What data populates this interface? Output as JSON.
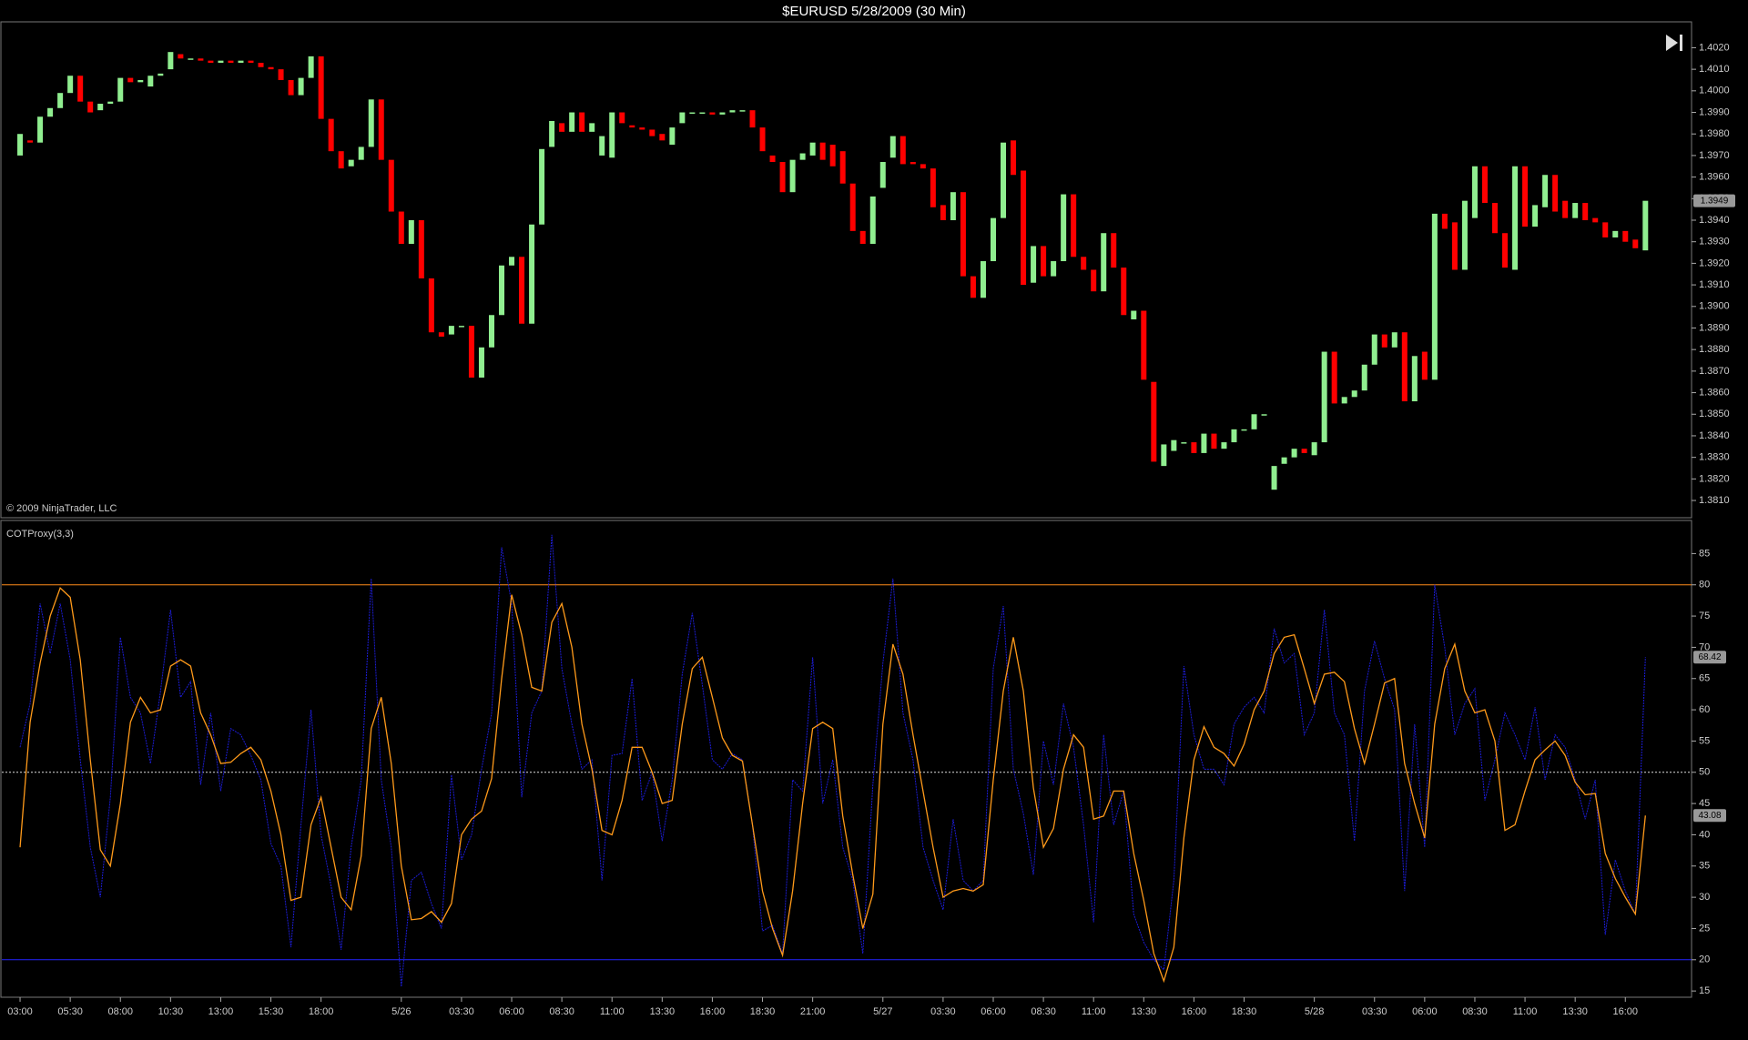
{
  "chart_data": [
    {
      "type": "candlestick",
      "title": "$EURUSD  5/28/2009 (30 Min)",
      "annotation": "© 2009 NinjaTrader, LLC",
      "up_color": "#90ee90",
      "down_color": "#ff0000",
      "xlim": [
        -2,
        166.6
      ],
      "ylim": [
        1.3802,
        1.4032
      ],
      "yticks": [
        {
          "value": 1.381,
          "label": "1.3810"
        },
        {
          "value": 1.382,
          "label": "1.3820"
        },
        {
          "value": 1.383,
          "label": "1.3830"
        },
        {
          "value": 1.384,
          "label": "1.3840"
        },
        {
          "value": 1.385,
          "label": "1.3850"
        },
        {
          "value": 1.386,
          "label": "1.3860"
        },
        {
          "value": 1.387,
          "label": "1.3870"
        },
        {
          "value": 1.388,
          "label": "1.3880"
        },
        {
          "value": 1.389,
          "label": "1.3890"
        },
        {
          "value": 1.39,
          "label": "1.3900"
        },
        {
          "value": 1.391,
          "label": "1.3910"
        },
        {
          "value": 1.392,
          "label": "1.3920"
        },
        {
          "value": 1.393,
          "label": "1.3930"
        },
        {
          "value": 1.394,
          "label": "1.3940"
        },
        {
          "value": 1.395,
          "label": "1.3950"
        },
        {
          "value": 1.396,
          "label": "1.3960"
        },
        {
          "value": 1.397,
          "label": "1.3970"
        },
        {
          "value": 1.398,
          "label": "1.3980"
        },
        {
          "value": 1.399,
          "label": "1.3990"
        },
        {
          "value": 1.4,
          "label": "1.4000"
        },
        {
          "value": 1.401,
          "label": "1.4010"
        },
        {
          "value": 1.402,
          "label": "1.4020"
        }
      ],
      "open": [
        1.397,
        1.3977,
        1.3976,
        1.3988,
        1.3992,
        1.3999,
        1.4007,
        1.3995,
        1.3991,
        1.3994,
        1.3995,
        1.4006,
        1.4004,
        1.4002,
        1.4007,
        1.401,
        1.4017,
        1.4015,
        1.4015,
        1.4014,
        1.4013,
        1.4014,
        1.4013,
        1.4014,
        1.4013,
        1.4011,
        1.401,
        1.4005,
        1.3998,
        1.4006,
        1.4016,
        1.3987,
        1.3972,
        1.3965,
        1.3968,
        1.3974,
        1.3996,
        1.3968,
        1.3944,
        1.3929,
        1.394,
        1.3913,
        1.3888,
        1.3887,
        1.3891,
        1.3891,
        1.3867,
        1.3881,
        1.3896,
        1.3919,
        1.3923,
        1.3892,
        1.3938,
        1.3974,
        1.3985,
        1.3981,
        1.399,
        1.3981,
        1.397,
        1.3969,
        1.399,
        1.3984,
        1.3983,
        1.3982,
        1.398,
        1.3975,
        1.3985,
        1.399,
        1.399,
        1.399,
        1.3989,
        1.399,
        1.3991,
        1.3991,
        1.3983,
        1.397,
        1.3967,
        1.3953,
        1.3968,
        1.397,
        1.3976,
        1.3975,
        1.3972,
        1.3957,
        1.3935,
        1.3929,
        1.3955,
        1.3969,
        1.3979,
        1.3967,
        1.3966,
        1.3964,
        1.3947,
        1.394,
        1.3953,
        1.3914,
        1.3904,
        1.3921,
        1.3941,
        1.3977,
        1.3963,
        1.3911,
        1.3928,
        1.3914,
        1.3921,
        1.3952,
        1.3923,
        1.3917,
        1.3907,
        1.3934,
        1.3918,
        1.3894,
        1.3898,
        1.3865,
        1.3826,
        1.3833,
        1.3837,
        1.3837,
        1.3832,
        1.3841,
        1.3834,
        1.3837,
        1.3843,
        1.3843,
        1.385,
        1.3815,
        1.3827,
        1.383,
        1.3834,
        1.3831,
        1.3837,
        1.3879,
        1.3855,
        1.3858,
        1.3861,
        1.3873,
        1.3887,
        1.3881,
        1.3888,
        1.3856,
        1.3879,
        1.3866,
        1.3943,
        1.3939,
        1.3917,
        1.3941,
        1.3965,
        1.3948,
        1.3934,
        1.3917,
        1.3965,
        1.3937,
        1.3946,
        1.3961,
        1.3949,
        1.3941,
        1.3948,
        1.3941,
        1.3939,
        1.3932,
        1.3935,
        1.3931,
        1.3926
      ],
      "close": [
        1.398,
        1.3976,
        1.3988,
        1.3992,
        1.3999,
        1.4007,
        1.3995,
        1.399,
        1.3994,
        1.3995,
        1.4006,
        1.4004,
        1.4005,
        1.4007,
        1.4008,
        1.4018,
        1.4015,
        1.4015,
        1.4014,
        1.4013,
        1.4014,
        1.4013,
        1.4014,
        1.4013,
        1.4011,
        1.401,
        1.4005,
        1.3998,
        1.4006,
        1.4016,
        1.3987,
        1.3972,
        1.3964,
        1.3968,
        1.3974,
        1.3996,
        1.3968,
        1.3944,
        1.3929,
        1.394,
        1.3913,
        1.3888,
        1.3886,
        1.3891,
        1.3891,
        1.3867,
        1.3881,
        1.3896,
        1.3919,
        1.3923,
        1.3892,
        1.3938,
        1.3973,
        1.3986,
        1.3981,
        1.399,
        1.3981,
        1.3985,
        1.3979,
        1.399,
        1.3985,
        1.3983,
        1.3982,
        1.3979,
        1.3977,
        1.3983,
        1.399,
        1.399,
        1.399,
        1.3989,
        1.399,
        1.3991,
        1.3991,
        1.3983,
        1.3972,
        1.3967,
        1.3953,
        1.3968,
        1.3971,
        1.3976,
        1.3968,
        1.3965,
        1.3957,
        1.3935,
        1.3929,
        1.3951,
        1.3967,
        1.3979,
        1.3966,
        1.3966,
        1.3964,
        1.3946,
        1.394,
        1.3953,
        1.3914,
        1.3904,
        1.3921,
        1.3941,
        1.3976,
        1.3961,
        1.391,
        1.3928,
        1.3914,
        1.3921,
        1.3952,
        1.3923,
        1.3917,
        1.3907,
        1.3934,
        1.3918,
        1.3896,
        1.3898,
        1.3866,
        1.3828,
        1.3836,
        1.3838,
        1.3837,
        1.3832,
        1.3841,
        1.3834,
        1.3837,
        1.3843,
        1.3843,
        1.385,
        1.385,
        1.3826,
        1.383,
        1.3834,
        1.3832,
        1.3837,
        1.3879,
        1.3855,
        1.3858,
        1.3861,
        1.3873,
        1.3887,
        1.3881,
        1.3888,
        1.3856,
        1.3877,
        1.3866,
        1.3943,
        1.3936,
        1.3917,
        1.3949,
        1.3965,
        1.3948,
        1.3934,
        1.3918,
        1.3965,
        1.3937,
        1.3947,
        1.3961,
        1.3944,
        1.3941,
        1.3948,
        1.394,
        1.3939,
        1.3932,
        1.3935,
        1.393,
        1.3927,
        1.3949
      ]
    },
    {
      "type": "line",
      "title": "COTProxy(3,3)",
      "xlim": [
        -2,
        166.6
      ],
      "ylim": [
        14,
        90.3
      ],
      "yticks": [
        15,
        20,
        25,
        30,
        35,
        40,
        45,
        50,
        55,
        60,
        65,
        70,
        75,
        80,
        85
      ],
      "xticks": [
        {
          "value": 0,
          "label": "03:00"
        },
        {
          "value": 5,
          "label": "05:30"
        },
        {
          "value": 10,
          "label": "08:00"
        },
        {
          "value": 15,
          "label": "10:30"
        },
        {
          "value": 20,
          "label": "13:00"
        },
        {
          "value": 25,
          "label": "15:30"
        },
        {
          "value": 30,
          "label": "18:00"
        },
        {
          "value": 38,
          "label": "5/26"
        },
        {
          "value": 44,
          "label": "03:30"
        },
        {
          "value": 49,
          "label": "06:00"
        },
        {
          "value": 54,
          "label": "08:30"
        },
        {
          "value": 59,
          "label": "11:00"
        },
        {
          "value": 64,
          "label": "13:30"
        },
        {
          "value": 69,
          "label": "16:00"
        },
        {
          "value": 74,
          "label": "18:30"
        },
        {
          "value": 79,
          "label": "21:00"
        },
        {
          "value": 86,
          "label": "5/27"
        },
        {
          "value": 92,
          "label": "03:30"
        },
        {
          "value": 97,
          "label": "06:00"
        },
        {
          "value": 102,
          "label": "08:30"
        },
        {
          "value": 107,
          "label": "11:00"
        },
        {
          "value": 112,
          "label": "13:30"
        },
        {
          "value": 117,
          "label": "16:00"
        },
        {
          "value": 122,
          "label": "18:30"
        },
        {
          "value": 129,
          "label": "5/28"
        },
        {
          "value": 135,
          "label": "03:30"
        },
        {
          "value": 140,
          "label": "06:00"
        },
        {
          "value": 145,
          "label": "08:30"
        },
        {
          "value": 150,
          "label": "11:00"
        },
        {
          "value": 155,
          "label": "13:30"
        },
        {
          "value": 160,
          "label": "16:00"
        }
      ],
      "levels": [
        {
          "value": 80,
          "color": "#ff8c1a"
        },
        {
          "value": 50,
          "color": "#dddddd"
        },
        {
          "value": 20,
          "color": "#2424ff"
        }
      ],
      "series": [
        {
          "color": "#1c1cd6",
          "dashed": true,
          "values": [
            54,
            61,
            77,
            69,
            77,
            68,
            52,
            38,
            30,
            46,
            71.6,
            62,
            59.5,
            51.4,
            63,
            76,
            62,
            64.5,
            48,
            59.5,
            47,
            57,
            56,
            52.7,
            48.8,
            38.6,
            35,
            22,
            41.6,
            60,
            40,
            31.8,
            21.6,
            38,
            48.8,
            81,
            48.8,
            38,
            15.7,
            32.7,
            34,
            29,
            25,
            49.6,
            36,
            40,
            50.5,
            59.5,
            86,
            77,
            46,
            59.5,
            63,
            88,
            66.6,
            57.7,
            50.5,
            52,
            32.7,
            52.7,
            53,
            65,
            45.5,
            50,
            39,
            48.8,
            65.7,
            75.5,
            64,
            52,
            50.5,
            53,
            52,
            41.6,
            24.6,
            25.5,
            21,
            48.8,
            47,
            68.4,
            45,
            52,
            38,
            32.7,
            21,
            48,
            67.5,
            81,
            59.5,
            52,
            38,
            32.7,
            28,
            42.5,
            32.7,
            31,
            32.7,
            66.6,
            76.6,
            50.5,
            43.4,
            33.6,
            55,
            48,
            61,
            54,
            41.6,
            26,
            56,
            41.6,
            47,
            27.3,
            22.8,
            20,
            18.4,
            32.7,
            67,
            56,
            50.5,
            50.5,
            48,
            57.7,
            60.4,
            62,
            59.5,
            73,
            67.5,
            69,
            56,
            59.5,
            76,
            59.5,
            56,
            39,
            63,
            71,
            65,
            60,
            31,
            57.7,
            38,
            80,
            70,
            56,
            61,
            63.4,
            45.5,
            52,
            59.5,
            56,
            52,
            60.4,
            48.8,
            56,
            54,
            48.8,
            42.5,
            48.8,
            24,
            36,
            31,
            27.3,
            68.42
          ]
        },
        {
          "color": "#ff9a1a",
          "dashed": false,
          "values": [
            38,
            58,
            67.5,
            75,
            79.5,
            78,
            68,
            52,
            37.6,
            35,
            45,
            58,
            62,
            59.5,
            60,
            67,
            68,
            67,
            59.5,
            56,
            51.4,
            51.6,
            53,
            54,
            52,
            47,
            40,
            29.5,
            30,
            41.6,
            46,
            38,
            30,
            28,
            36.6,
            57,
            62,
            51.4,
            35,
            26.4,
            26.6,
            27.7,
            26,
            29,
            40,
            42.5,
            43.8,
            49,
            65,
            78.4,
            72,
            63.6,
            63,
            74,
            77,
            70,
            57.7,
            50.5,
            40.7,
            40,
            45.5,
            54,
            54,
            50,
            45,
            45.5,
            57.7,
            66.6,
            68.4,
            62,
            55.5,
            52.7,
            51.8,
            41.6,
            31,
            25,
            20.7,
            31,
            45,
            57,
            58,
            57,
            43,
            33.6,
            25,
            30.5,
            57.7,
            70.5,
            65.7,
            56,
            47,
            38,
            30,
            31,
            31.4,
            31,
            32,
            48.8,
            63,
            71.6,
            63,
            47.5,
            38,
            41,
            50.5,
            56,
            54,
            42.5,
            43,
            47,
            47,
            37,
            29.5,
            21,
            16.6,
            22,
            39.5,
            52,
            57.3,
            54,
            53,
            51,
            54.5,
            60,
            63,
            69,
            71.6,
            72,
            66.6,
            61,
            65.7,
            66,
            64.5,
            57,
            51.4,
            57.7,
            64.3,
            65,
            51.4,
            45,
            39.5,
            57.7,
            66.6,
            70.5,
            63,
            59.5,
            60,
            55,
            40.7,
            41.6,
            47,
            52,
            53.6,
            55,
            52.7,
            48.4,
            46.4,
            46.6,
            37,
            33,
            30,
            27.3,
            43.08
          ]
        }
      ]
    }
  ]
}
